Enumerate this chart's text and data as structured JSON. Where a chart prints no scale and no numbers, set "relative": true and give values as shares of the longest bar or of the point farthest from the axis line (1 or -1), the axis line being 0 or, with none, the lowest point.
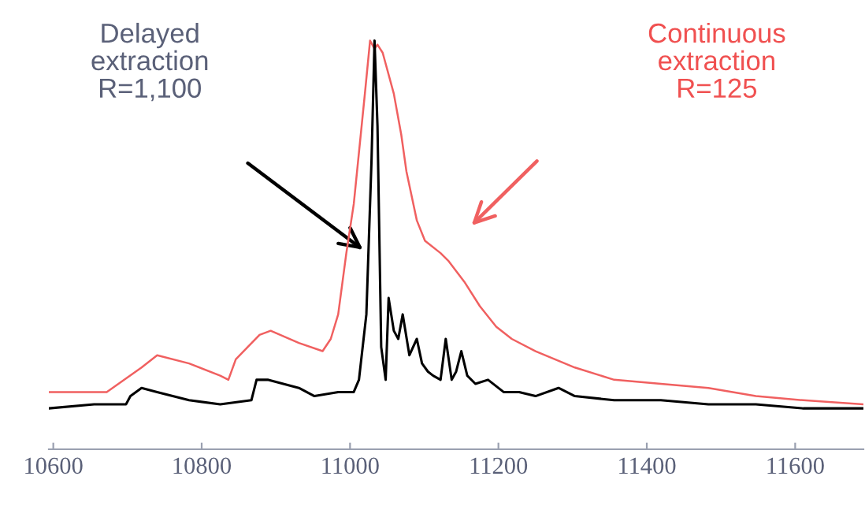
{
  "chart_data": {
    "type": "line",
    "relative": true,
    "xlim": [
      10594,
      11692
    ],
    "xticks": [
      10600,
      10800,
      11000,
      11200,
      11400,
      11600
    ],
    "tick_labels": "x",
    "grid": false,
    "legend": false,
    "marker": "none",
    "line_style": "solid",
    "series": [
      {
        "color": "#f06060",
        "x": [
          10594,
          10645,
          10666,
          10672,
          10719,
          10740,
          10783,
          10825,
          10836,
          10846,
          10878,
          10893,
          10931,
          10963,
          10974,
          10984,
          10995,
          11005,
          11020,
          11027,
          11033,
          11037,
          11044,
          11059,
          11069,
          11076,
          11090,
          11101,
          11122,
          11133,
          11154,
          11175,
          11197,
          11218,
          11250,
          11303,
          11356,
          11419,
          11483,
          11547,
          11611,
          11691
        ],
        "values": [
          0.14,
          0.14,
          0.14,
          0.14,
          0.2,
          0.23,
          0.21,
          0.18,
          0.17,
          0.22,
          0.28,
          0.29,
          0.26,
          0.24,
          0.27,
          0.33,
          0.48,
          0.6,
          0.87,
          1.0,
          0.98,
          0.99,
          0.97,
          0.87,
          0.77,
          0.68,
          0.56,
          0.51,
          0.48,
          0.46,
          0.41,
          0.35,
          0.3,
          0.27,
          0.24,
          0.2,
          0.17,
          0.16,
          0.15,
          0.13,
          0.12,
          0.11
        ]
      },
      {
        "color": "#000000",
        "x": [
          10594,
          10655,
          10698,
          10704,
          10719,
          10740,
          10783,
          10825,
          10867,
          10874,
          10889,
          10931,
          10952,
          10984,
          11005,
          11012,
          11022,
          11029,
          11033,
          11037,
          11042,
          11048,
          11052,
          11059,
          11065,
          11071,
          11080,
          11090,
          11097,
          11105,
          11112,
          11122,
          11129,
          11137,
          11143,
          11150,
          11158,
          11169,
          11186,
          11207,
          11228,
          11250,
          11281,
          11303,
          11356,
          11419,
          11483,
          11547,
          11611,
          11691
        ],
        "values": [
          0.1,
          0.11,
          0.11,
          0.13,
          0.15,
          0.14,
          0.12,
          0.11,
          0.12,
          0.17,
          0.17,
          0.15,
          0.13,
          0.14,
          0.14,
          0.17,
          0.33,
          0.71,
          1.0,
          0.79,
          0.25,
          0.17,
          0.37,
          0.29,
          0.27,
          0.33,
          0.23,
          0.27,
          0.21,
          0.19,
          0.18,
          0.17,
          0.27,
          0.17,
          0.19,
          0.24,
          0.18,
          0.16,
          0.17,
          0.14,
          0.14,
          0.13,
          0.15,
          0.13,
          0.12,
          0.12,
          0.11,
          0.11,
          0.1,
          0.1
        ]
      }
    ],
    "annotations": [
      "Delayed\nextraction\nR=1,100",
      "Continuous\nextraction\nR=125"
    ]
  }
}
